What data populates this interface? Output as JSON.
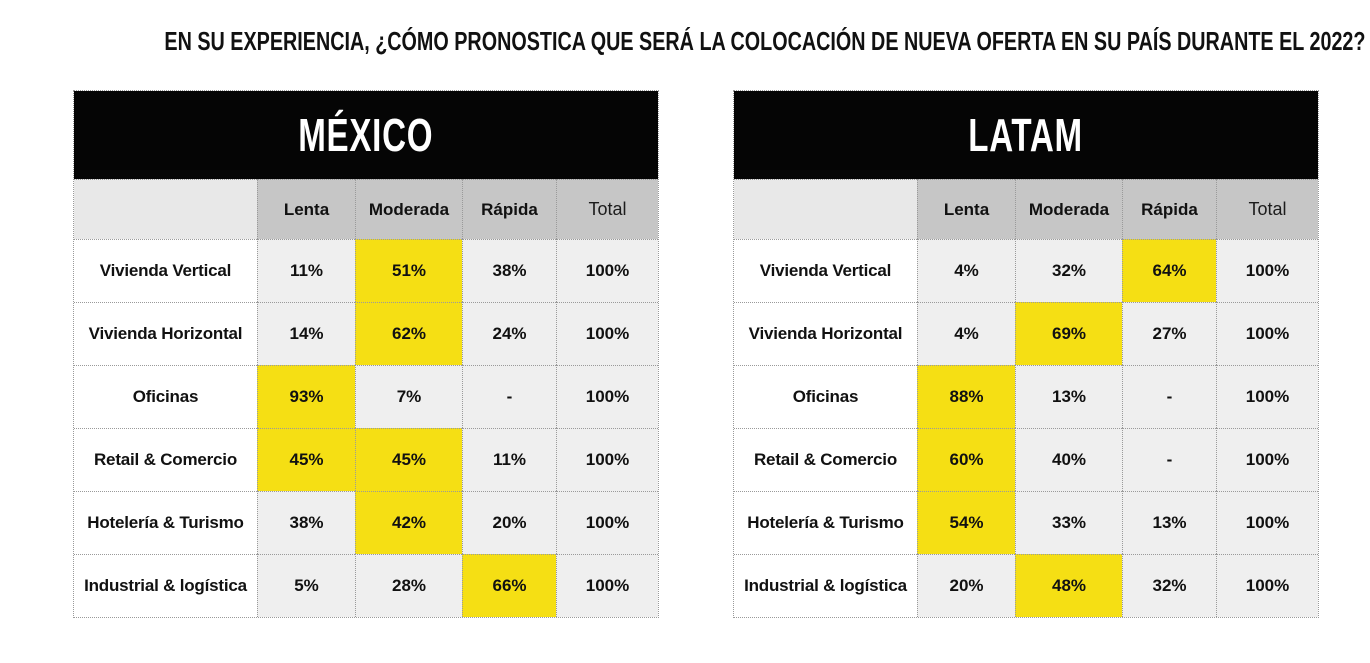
{
  "title": "EN SU EXPERIENCIA, ¿CÓMO PRONOSTICA QUE SERÁ LA COLOCACIÓN DE NUEVA OFERTA EN SU PAÍS DURANTE EL 2022?",
  "colors": {
    "highlight_yellow": "#f5df14",
    "cell_gray": "#efefef",
    "column_header_gray": "#c6c6c6",
    "corner_gray": "#e8e8e8",
    "header_black": "#050505",
    "text": "#111111"
  },
  "chart_data": [
    {
      "type": "table",
      "id": "mexico",
      "title": "MÉXICO",
      "columns": [
        "Lenta",
        "Moderada",
        "Rápida",
        "Total"
      ],
      "rows": [
        {
          "label": "Vivienda Vertical",
          "values": [
            "11%",
            "51%",
            "38%",
            "100%"
          ],
          "highlight": [
            1
          ]
        },
        {
          "label": "Vivienda Horizontal",
          "values": [
            "14%",
            "62%",
            "24%",
            "100%"
          ],
          "highlight": [
            1
          ]
        },
        {
          "label": "Oficinas",
          "values": [
            "93%",
            "7%",
            "-",
            "100%"
          ],
          "highlight": [
            0
          ]
        },
        {
          "label": "Retail & Comercio",
          "values": [
            "45%",
            "45%",
            "11%",
            "100%"
          ],
          "highlight": [
            0,
            1
          ]
        },
        {
          "label": "Hotelería & Turismo",
          "values": [
            "38%",
            "42%",
            "20%",
            "100%"
          ],
          "highlight": [
            1
          ]
        },
        {
          "label": "Industrial & logística",
          "values": [
            "5%",
            "28%",
            "66%",
            "100%"
          ],
          "highlight": [
            2
          ]
        }
      ]
    },
    {
      "type": "table",
      "id": "latam",
      "title": "LATAM",
      "columns": [
        "Lenta",
        "Moderada",
        "Rápida",
        "Total"
      ],
      "rows": [
        {
          "label": "Vivienda Vertical",
          "values": [
            "4%",
            "32%",
            "64%",
            "100%"
          ],
          "highlight": [
            2
          ]
        },
        {
          "label": "Vivienda Horizontal",
          "values": [
            "4%",
            "69%",
            "27%",
            "100%"
          ],
          "highlight": [
            1
          ]
        },
        {
          "label": "Oficinas",
          "values": [
            "88%",
            "13%",
            "-",
            "100%"
          ],
          "highlight": [
            0
          ]
        },
        {
          "label": "Retail & Comercio",
          "values": [
            "60%",
            "40%",
            "-",
            "100%"
          ],
          "highlight": [
            0
          ]
        },
        {
          "label": "Hotelería & Turismo",
          "values": [
            "54%",
            "33%",
            "13%",
            "100%"
          ],
          "highlight": [
            0
          ]
        },
        {
          "label": "Industrial & logística",
          "values": [
            "20%",
            "48%",
            "32%",
            "100%"
          ],
          "highlight": [
            1
          ]
        }
      ]
    }
  ]
}
